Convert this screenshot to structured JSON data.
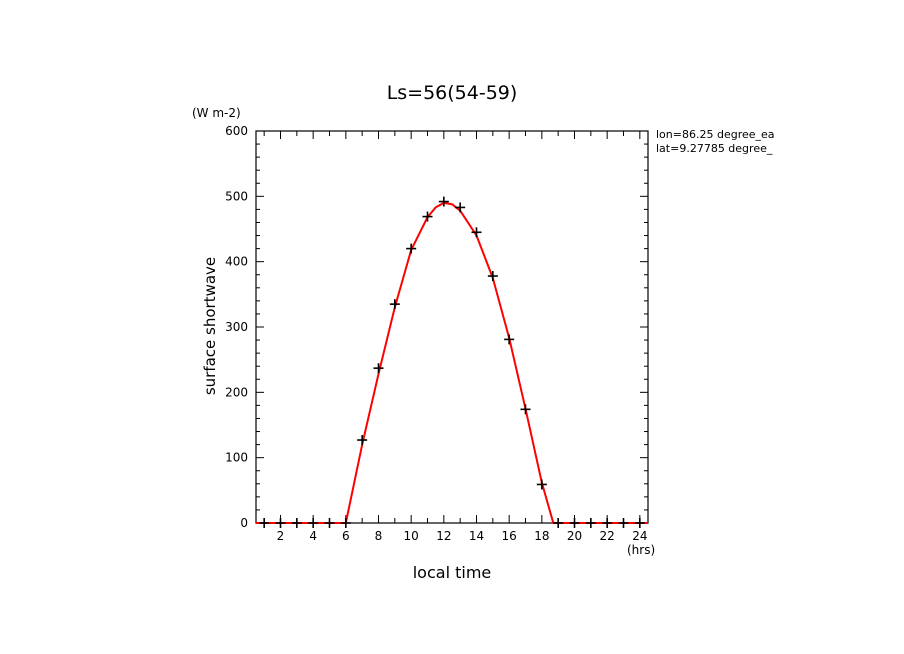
{
  "chart_data": {
    "type": "line",
    "title": "Ls=56(54-59)",
    "xlabel": "local time",
    "x_unit": "(hrs)",
    "ylabel": "surface shortwave",
    "y_unit": "(W m-2)",
    "annotations": [
      "lon=86.25 degree_ea",
      "lat=9.27785 degree_"
    ],
    "xlim": [
      0.5,
      24.5
    ],
    "ylim": [
      0,
      600
    ],
    "x_ticks": [
      2,
      4,
      6,
      8,
      10,
      12,
      14,
      16,
      18,
      20,
      22,
      24
    ],
    "y_ticks": [
      0,
      100,
      200,
      300,
      400,
      500,
      600
    ],
    "line_color": "#ff0000",
    "marker_color": "#000000",
    "series": [
      {
        "name": "",
        "style": "line",
        "x": [
          0.5,
          1,
          2,
          3,
          4,
          5,
          6,
          7,
          8,
          9,
          10,
          11,
          11.5,
          12,
          12.5,
          13,
          14,
          15,
          16,
          17,
          18,
          18.7,
          19,
          20,
          21,
          22,
          23,
          24,
          24.5
        ],
        "values": [
          0,
          0,
          0,
          0,
          0,
          0,
          0,
          120,
          228,
          330,
          418,
          468,
          483,
          490,
          488,
          478,
          440,
          375,
          283,
          175,
          62,
          0,
          0,
          0,
          0,
          0,
          0,
          0,
          0
        ]
      },
      {
        "name": "",
        "style": "markers",
        "x": [
          1,
          2,
          3,
          4,
          5,
          6,
          7,
          8,
          9,
          10,
          11,
          12,
          13,
          14,
          15,
          16,
          17,
          18,
          19,
          20,
          21,
          22,
          23,
          24
        ],
        "values": [
          0,
          0,
          0,
          0,
          0,
          0,
          127,
          237,
          335,
          420,
          469,
          492,
          483,
          445,
          378,
          281,
          174,
          59,
          0,
          0,
          0,
          0,
          0,
          0
        ]
      }
    ]
  }
}
